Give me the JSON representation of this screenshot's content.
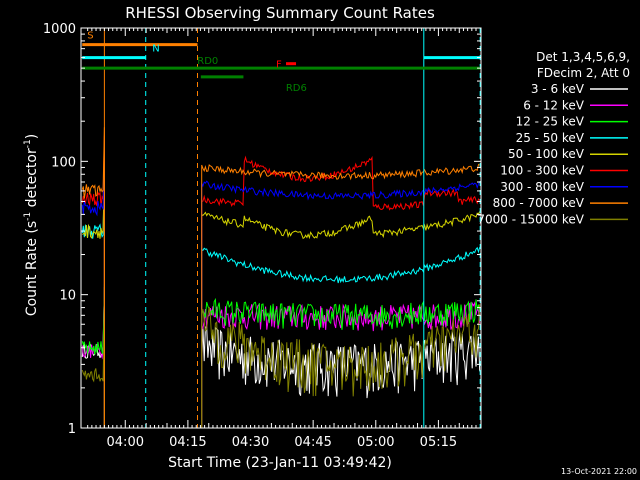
{
  "chart_data": {
    "type": "line",
    "title": "RHESSI Observing Summary Count Rates",
    "xlabel": "Start Time (23-Jan-11 03:49:42)",
    "ylabel_parts": [
      "Count Rate (s",
      "-1",
      " detector",
      "-1",
      ")"
    ],
    "yscale": "log",
    "ylim": [
      1,
      1000
    ],
    "xlim_minutes": [
      -0.3,
      95.5
    ],
    "x_ticks": [
      {
        "m": 10.3,
        "label": "04:00"
      },
      {
        "m": 25.3,
        "label": "04:15"
      },
      {
        "m": 40.3,
        "label": "04:30"
      },
      {
        "m": 55.3,
        "label": "04:45"
      },
      {
        "m": 70.3,
        "label": "05:00"
      },
      {
        "m": 85.3,
        "label": "05:15"
      }
    ],
    "y_ticks": [
      {
        "v": 1,
        "label": "1"
      },
      {
        "v": 10,
        "label": "10"
      },
      {
        "v": 100,
        "label": "100"
      },
      {
        "v": 1000,
        "label": "1000"
      }
    ],
    "legend_header": [
      "Det 1,3,4,5,6,9,",
      "FDecim 2, Att 0"
    ],
    "legend_placement": "right",
    "series": [
      {
        "name": "3 - 6 keV",
        "color": "#ffffff"
      },
      {
        "name": "6 - 12 keV",
        "color": "#ff00ff"
      },
      {
        "name": "12 - 25 keV",
        "color": "#00ff00"
      },
      {
        "name": "25 - 50 keV",
        "color": "#00ffff"
      },
      {
        "name": "50 - 100 keV",
        "color": "#d4d400"
      },
      {
        "name": "100 - 300 keV",
        "color": "#ff0000"
      },
      {
        "name": "300 - 800 keV",
        "color": "#0000ff"
      },
      {
        "name": "800 - 7000 keV",
        "color": "#ff8000"
      },
      {
        "name": "7000 - 15000 keV",
        "color": "#808000"
      }
    ],
    "segments": [
      {
        "label": "S",
        "color": "#ff8000",
        "level": 750,
        "start_m": 0,
        "end_m": 27.6
      },
      {
        "label": "N",
        "color": "#00ffff",
        "level": 600,
        "start_m": 0,
        "end_m": 15.2
      },
      {
        "label": "N",
        "color": "#00ffff",
        "level": 600,
        "start_m": 81.8,
        "end_m": 95.3
      },
      {
        "label": "RD0",
        "color": "#008000",
        "level": 500,
        "start_m": 0,
        "end_m": 95.3
      },
      {
        "label": "RD6",
        "color": "#008000",
        "level": 430,
        "start_m": 28.4,
        "end_m": 38.6
      },
      {
        "label": "F",
        "color": "#ff0000",
        "level": 540,
        "start_m": 48.8,
        "end_m": 51.2
      }
    ],
    "vertical_markers": [
      {
        "m": 5.3,
        "color": "#ff8000",
        "style": "solid"
      },
      {
        "m": 15.2,
        "color": "#00ffff",
        "style": "dashed"
      },
      {
        "m": 27.6,
        "color": "#ff8000",
        "style": "dashed"
      },
      {
        "m": 81.8,
        "color": "#00ffff",
        "style": "solid"
      },
      {
        "m": 95.3,
        "color": "#00ffff",
        "style": "dashed"
      }
    ]
  },
  "footer": {
    "date_stamp": "13-Oct-2021 22:00"
  }
}
